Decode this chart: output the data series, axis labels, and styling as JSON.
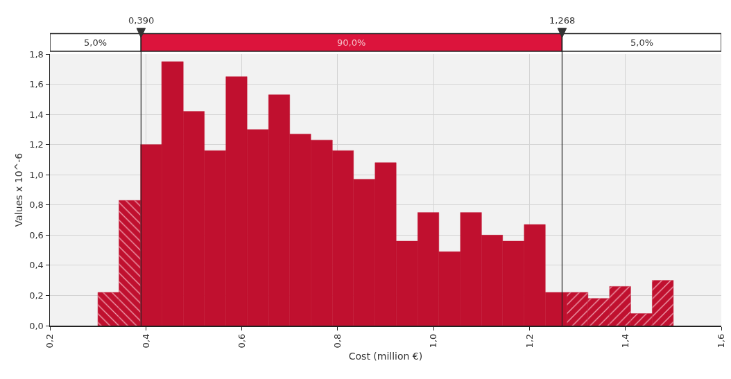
{
  "chart_data": {
    "type": "histogram",
    "xlabel": "Cost (million €)",
    "ylabel": "Values x 10^-6",
    "bins": [
      0.3,
      0.344,
      0.389,
      0.433,
      0.478,
      0.522,
      0.567,
      0.611,
      0.656,
      0.7,
      0.744,
      0.789,
      0.833,
      0.878,
      0.922,
      0.967,
      1.011,
      1.056,
      1.1,
      1.144,
      1.189,
      1.233,
      1.278,
      1.322,
      1.367,
      1.411,
      1.456,
      1.5
    ],
    "values": [
      0.22,
      0.83,
      1.2,
      1.75,
      1.42,
      1.16,
      1.65,
      1.3,
      1.53,
      1.27,
      1.23,
      1.16,
      0.97,
      1.08,
      0.56,
      0.75,
      0.49,
      0.75,
      0.6,
      0.56,
      0.67,
      0.22,
      0.22,
      0.18,
      0.26,
      0.08,
      0.3
    ],
    "color": "#c0102f",
    "xlim": [
      0.2,
      1.6
    ],
    "xticks": [
      {
        "value": 0.2,
        "label": "0,2"
      },
      {
        "value": 0.4,
        "label": "0,4"
      },
      {
        "value": 0.6,
        "label": "0,6"
      },
      {
        "value": 0.8,
        "label": "0,8"
      },
      {
        "value": 1.0,
        "label": "1,0"
      },
      {
        "value": 1.2,
        "label": "1,2"
      },
      {
        "value": 1.4,
        "label": "1,4"
      },
      {
        "value": 1.6,
        "label": "1,6"
      }
    ],
    "ylim": [
      0,
      1.8
    ],
    "yticks": [
      {
        "value": 0,
        "label": "0,0"
      },
      {
        "value": 0.2,
        "label": "0,2"
      },
      {
        "value": 0.4,
        "label": "0,4"
      },
      {
        "value": 0.6,
        "label": "0,6"
      },
      {
        "value": 0.8,
        "label": "0,8"
      },
      {
        "value": 1.0,
        "label": "1,0"
      },
      {
        "value": 1.2,
        "label": "1,2"
      },
      {
        "value": 1.4,
        "label": "1,4"
      },
      {
        "value": 1.6,
        "label": "1,6"
      },
      {
        "value": 1.8,
        "label": "1,8"
      }
    ],
    "grid": true,
    "ref_lines": [
      {
        "axis": "x",
        "value": 0.39,
        "label": "0,390"
      },
      {
        "axis": "x",
        "value": 1.268,
        "label": "1,268"
      }
    ],
    "annotations": [
      "5,0%",
      "90,0%",
      "5,0%"
    ]
  }
}
